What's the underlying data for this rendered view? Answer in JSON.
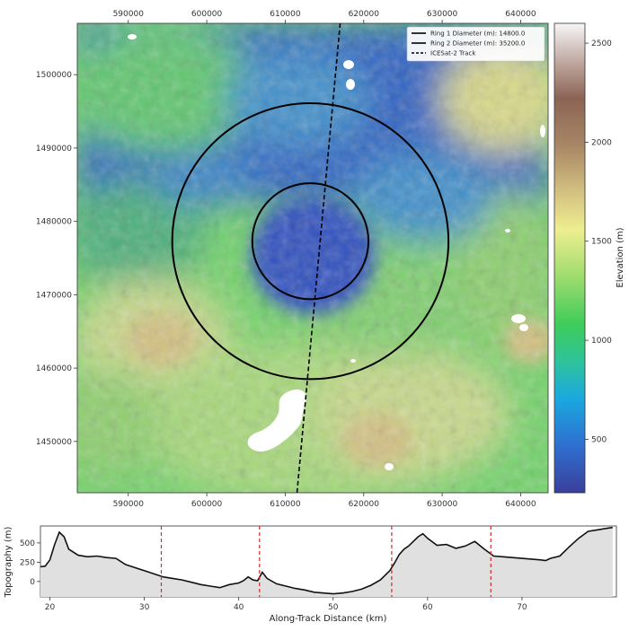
{
  "chart_data": [
    {
      "type": "heatmap",
      "title": "",
      "xlabel": "",
      "ylabel": "",
      "x_ticks": [
        "590000",
        "600000",
        "610000",
        "620000",
        "630000",
        "640000"
      ],
      "y_ticks": [
        "1450000",
        "1460000",
        "1470000",
        "1480000",
        "1490000",
        "1500000"
      ],
      "xlim": [
        583500,
        643500
      ],
      "ylim": [
        1443000,
        1507000
      ],
      "colorbar": {
        "label": "Elevation (m)",
        "ticks": [
          "500",
          "1000",
          "1500",
          "2000",
          "2500"
        ],
        "tick_values": [
          500,
          1000,
          1500,
          2000,
          2500
        ],
        "range": [
          230,
          2600
        ],
        "colormap": "terrain"
      },
      "rings": [
        {
          "center_x": 613200,
          "center_y": 1477300,
          "diameter_m": 14800
        },
        {
          "center_x": 613200,
          "center_y": 1477300,
          "diameter_m": 35200
        }
      ],
      "track": [
        [
          617000,
          1507000
        ],
        [
          611500,
          1443000
        ]
      ],
      "legend_position": "top-right",
      "legend": [
        {
          "label": "Ring 1 Diameter (m): 14800.0",
          "style": "solid",
          "color": "#000000"
        },
        {
          "label": "Ring 2 Diameter (m): 35200.0",
          "style": "solid",
          "color": "#000000"
        },
        {
          "label": "ICESat-2 Track",
          "style": "dashed",
          "color": "#000000"
        }
      ]
    },
    {
      "type": "area",
      "xlabel": "Along-Track Distance (km)",
      "ylabel": "Topography (m)",
      "x_ticks": [
        "20",
        "30",
        "40",
        "50",
        "60",
        "70"
      ],
      "y_ticks": [
        "0",
        "250",
        "500"
      ],
      "xlim": [
        19,
        80
      ],
      "ylim": [
        -200,
        720
      ],
      "fill_color": "#e0e0e0",
      "line_color": "#111111",
      "vlines": [
        31.8,
        42.2,
        56.2,
        66.7
      ],
      "vline_color": "#d62728",
      "x": [
        19.0,
        19.5,
        20.0,
        20.5,
        21.0,
        21.5,
        22.0,
        23.0,
        24.0,
        25.0,
        26.0,
        27.0,
        28.0,
        29.0,
        30.0,
        31.0,
        32.0,
        33.0,
        34.0,
        35.0,
        36.0,
        37.0,
        38.0,
        39.0,
        40.0,
        40.5,
        41.0,
        41.5,
        42.0,
        42.5,
        43.0,
        44.0,
        45.0,
        46.0,
        47.0,
        48.0,
        49.0,
        50.0,
        51.0,
        52.0,
        53.0,
        54.0,
        55.0,
        56.0,
        56.5,
        57.0,
        57.5,
        58.0,
        59.0,
        59.5,
        60.0,
        61.0,
        62.0,
        63.0,
        64.0,
        65.0,
        66.0,
        67.0,
        68.0,
        69.0,
        70.0,
        71.0,
        72.0,
        72.5,
        73.0,
        74.0,
        75.0,
        76.0,
        77.0,
        78.0,
        79.0,
        79.6
      ],
      "y": [
        190,
        200,
        280,
        480,
        640,
        580,
        420,
        340,
        320,
        330,
        310,
        300,
        220,
        180,
        140,
        100,
        60,
        40,
        20,
        -10,
        -40,
        -60,
        -80,
        -40,
        -20,
        10,
        60,
        20,
        10,
        120,
        40,
        -30,
        -60,
        -90,
        -110,
        -140,
        -150,
        -160,
        -150,
        -130,
        -100,
        -50,
        20,
        140,
        240,
        350,
        420,
        460,
        580,
        620,
        560,
        470,
        480,
        430,
        460,
        520,
        420,
        330,
        320,
        310,
        300,
        290,
        280,
        270,
        300,
        330,
        450,
        560,
        650,
        670,
        690,
        700
      ]
    }
  ]
}
